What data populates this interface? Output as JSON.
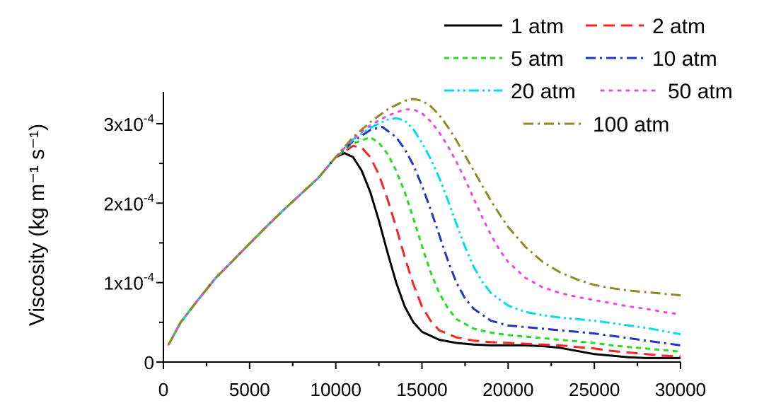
{
  "chart_data": {
    "type": "line",
    "title": "",
    "xlabel": "",
    "ylabel": "Viscosity (kg m⁻¹ s⁻¹)",
    "xlim": [
      0,
      30000
    ],
    "ylim": [
      0,
      0.00034
    ],
    "x_ticks": [
      0,
      5000,
      10000,
      15000,
      20000,
      25000,
      30000
    ],
    "x_tick_labels": [
      "0",
      "5000",
      "10000",
      "15000",
      "20000",
      "25000",
      "30000"
    ],
    "y_ticks": [
      0,
      0.0001,
      0.0002,
      0.0003
    ],
    "y_tick_labels": [
      {
        "base": "0",
        "exp": ""
      },
      {
        "base": "1x10",
        "exp": "-4"
      },
      {
        "base": "2x10",
        "exp": "-4"
      },
      {
        "base": "3x10",
        "exp": "-4"
      }
    ],
    "grid": false,
    "legend_position": "top-right",
    "series": [
      {
        "name": "1 atm",
        "color": "#000000",
        "dash": "solid",
        "points": [
          [
            300,
            2.2e-05
          ],
          [
            1000,
            5e-05
          ],
          [
            2000,
            7.8e-05
          ],
          [
            3000,
            0.000105
          ],
          [
            4000,
            0.000127
          ],
          [
            5000,
            0.000149
          ],
          [
            6000,
            0.000171
          ],
          [
            7000,
            0.000192
          ],
          [
            8000,
            0.000212
          ],
          [
            9000,
            0.000232
          ],
          [
            10000,
            0.000258
          ],
          [
            10500,
            0.000263
          ],
          [
            11000,
            0.000258
          ],
          [
            11500,
            0.000241
          ],
          [
            12000,
            0.000214
          ],
          [
            12500,
            0.000178
          ],
          [
            13000,
            0.000138
          ],
          [
            13500,
            0.0001
          ],
          [
            14000,
            7e-05
          ],
          [
            14500,
            5e-05
          ],
          [
            15000,
            3.8e-05
          ],
          [
            16000,
            2.8e-05
          ],
          [
            17000,
            2.4e-05
          ],
          [
            18000,
            2.2e-05
          ],
          [
            19000,
            2.1e-05
          ],
          [
            20000,
            2.1e-05
          ],
          [
            21000,
            2.1e-05
          ],
          [
            22000,
            2e-05
          ],
          [
            23000,
            1.8e-05
          ],
          [
            24000,
            1.4e-05
          ],
          [
            25000,
            1e-05
          ],
          [
            26000,
            8e-06
          ],
          [
            27000,
            6e-06
          ],
          [
            28000,
            5e-06
          ],
          [
            29000,
            5e-06
          ],
          [
            30000,
            5e-06
          ]
        ]
      },
      {
        "name": "2 atm",
        "color": "#ff2020",
        "dash": "dashed",
        "points": [
          [
            300,
            2.2e-05
          ],
          [
            1000,
            5e-05
          ],
          [
            2000,
            7.8e-05
          ],
          [
            3000,
            0.000105
          ],
          [
            4000,
            0.000127
          ],
          [
            5000,
            0.000149
          ],
          [
            6000,
            0.000171
          ],
          [
            7000,
            0.000192
          ],
          [
            8000,
            0.000212
          ],
          [
            9000,
            0.000232
          ],
          [
            10000,
            0.000258
          ],
          [
            11000,
            0.000272
          ],
          [
            11500,
            0.00027
          ],
          [
            12000,
            0.000258
          ],
          [
            12500,
            0.000236
          ],
          [
            13000,
            0.000205
          ],
          [
            13500,
            0.00017
          ],
          [
            14000,
            0.000132
          ],
          [
            14500,
            9.8e-05
          ],
          [
            15000,
            7e-05
          ],
          [
            15500,
            5.2e-05
          ],
          [
            16000,
            4e-05
          ],
          [
            17000,
            3.1e-05
          ],
          [
            18000,
            2.7e-05
          ],
          [
            19000,
            2.5e-05
          ],
          [
            20000,
            2.4e-05
          ],
          [
            21000,
            2.3e-05
          ],
          [
            22000,
            2.2e-05
          ],
          [
            23000,
            2.1e-05
          ],
          [
            24000,
            1.9e-05
          ],
          [
            25000,
            1.7e-05
          ],
          [
            26000,
            1.4e-05
          ],
          [
            27000,
            1.2e-05
          ],
          [
            28000,
            1e-05
          ],
          [
            29000,
            8e-06
          ],
          [
            30000,
            7e-06
          ]
        ]
      },
      {
        "name": "5 atm",
        "color": "#22dd22",
        "dash": "short-dashed",
        "points": [
          [
            300,
            2.2e-05
          ],
          [
            1000,
            5e-05
          ],
          [
            2000,
            7.8e-05
          ],
          [
            3000,
            0.000105
          ],
          [
            4000,
            0.000127
          ],
          [
            5000,
            0.000149
          ],
          [
            6000,
            0.000171
          ],
          [
            7000,
            0.000192
          ],
          [
            8000,
            0.000212
          ],
          [
            9000,
            0.000232
          ],
          [
            10000,
            0.000258
          ],
          [
            11000,
            0.000275
          ],
          [
            12000,
            0.000283
          ],
          [
            12500,
            0.000276
          ],
          [
            13000,
            0.000262
          ],
          [
            13500,
            0.000241
          ],
          [
            14000,
            0.000214
          ],
          [
            14500,
            0.000181
          ],
          [
            15000,
            0.000146
          ],
          [
            15500,
            0.000113
          ],
          [
            16000,
            8.7e-05
          ],
          [
            16500,
            6.8e-05
          ],
          [
            17000,
            5.4e-05
          ],
          [
            18000,
            4.2e-05
          ],
          [
            19000,
            3.7e-05
          ],
          [
            20000,
            3.4e-05
          ],
          [
            21000,
            3.2e-05
          ],
          [
            22000,
            3e-05
          ],
          [
            23000,
            2.8e-05
          ],
          [
            24000,
            2.6e-05
          ],
          [
            25000,
            2.4e-05
          ],
          [
            26000,
            2.1e-05
          ],
          [
            27000,
            1.9e-05
          ],
          [
            28000,
            1.7e-05
          ],
          [
            29000,
            1.5e-05
          ],
          [
            30000,
            1.3e-05
          ]
        ]
      },
      {
        "name": "10 atm",
        "color": "#2233cc",
        "dash": "dash-dot",
        "points": [
          [
            300,
            2.2e-05
          ],
          [
            1000,
            5e-05
          ],
          [
            2000,
            7.8e-05
          ],
          [
            3000,
            0.000105
          ],
          [
            4000,
            0.000127
          ],
          [
            5000,
            0.000149
          ],
          [
            6000,
            0.000171
          ],
          [
            7000,
            0.000192
          ],
          [
            8000,
            0.000212
          ],
          [
            9000,
            0.000232
          ],
          [
            10000,
            0.000258
          ],
          [
            11000,
            0.000278
          ],
          [
            12000,
            0.000292
          ],
          [
            12700,
            0.000296
          ],
          [
            13500,
            0.000283
          ],
          [
            14000,
            0.000268
          ],
          [
            14500,
            0.000248
          ],
          [
            15000,
            0.000222
          ],
          [
            15500,
            0.000192
          ],
          [
            16000,
            0.00016
          ],
          [
            16500,
            0.000128
          ],
          [
            17000,
            0.0001
          ],
          [
            17500,
            8e-05
          ],
          [
            18000,
            6.7e-05
          ],
          [
            19000,
            5.2e-05
          ],
          [
            20000,
            4.6e-05
          ],
          [
            21000,
            4.4e-05
          ],
          [
            22000,
            4.2e-05
          ],
          [
            23000,
            4e-05
          ],
          [
            24000,
            3.8e-05
          ],
          [
            25000,
            3.6e-05
          ],
          [
            26000,
            3.3e-05
          ],
          [
            27000,
            3e-05
          ],
          [
            28000,
            2.7e-05
          ],
          [
            29000,
            2.4e-05
          ],
          [
            30000,
            2.1e-05
          ]
        ]
      },
      {
        "name": "20 atm",
        "color": "#00ddee",
        "dash": "dash-dot-dot",
        "points": [
          [
            300,
            2.2e-05
          ],
          [
            1000,
            5e-05
          ],
          [
            2000,
            7.8e-05
          ],
          [
            3000,
            0.000105
          ],
          [
            4000,
            0.000127
          ],
          [
            5000,
            0.000149
          ],
          [
            6000,
            0.000171
          ],
          [
            7000,
            0.000192
          ],
          [
            8000,
            0.000212
          ],
          [
            9000,
            0.000232
          ],
          [
            10000,
            0.000258
          ],
          [
            11000,
            0.00028
          ],
          [
            12000,
            0.000295
          ],
          [
            13000,
            0.000305
          ],
          [
            13500,
            0.000307
          ],
          [
            14000,
            0.000304
          ],
          [
            14500,
            0.000293
          ],
          [
            15000,
            0.000276
          ],
          [
            15500,
            0.000256
          ],
          [
            16000,
            0.000232
          ],
          [
            16500,
            0.000204
          ],
          [
            17000,
            0.000174
          ],
          [
            17500,
            0.000145
          ],
          [
            18000,
            0.00012
          ],
          [
            18500,
            0.000101
          ],
          [
            19000,
            8.7e-05
          ],
          [
            20000,
            7.1e-05
          ],
          [
            21000,
            6.3e-05
          ],
          [
            22000,
            5.9e-05
          ],
          [
            23000,
            5.6e-05
          ],
          [
            24000,
            5.4e-05
          ],
          [
            25000,
            5.2e-05
          ],
          [
            26000,
            4.9e-05
          ],
          [
            27000,
            4.6e-05
          ],
          [
            28000,
            4.3e-05
          ],
          [
            29000,
            3.9e-05
          ],
          [
            30000,
            3.5e-05
          ]
        ]
      },
      {
        "name": "50 atm",
        "color": "#ee44ee",
        "dash": "dotted",
        "points": [
          [
            300,
            2.2e-05
          ],
          [
            1000,
            5e-05
          ],
          [
            2000,
            7.8e-05
          ],
          [
            3000,
            0.000105
          ],
          [
            4000,
            0.000127
          ],
          [
            5000,
            0.000149
          ],
          [
            6000,
            0.000171
          ],
          [
            7000,
            0.000192
          ],
          [
            8000,
            0.000212
          ],
          [
            9000,
            0.000232
          ],
          [
            10000,
            0.000258
          ],
          [
            11000,
            0.000281
          ],
          [
            12000,
            0.000298
          ],
          [
            13000,
            0.00031
          ],
          [
            14000,
            0.000318
          ],
          [
            14500,
            0.000318
          ],
          [
            15000,
            0.000313
          ],
          [
            15500,
            0.000303
          ],
          [
            16000,
            0.000289
          ],
          [
            16500,
            0.000272
          ],
          [
            17000,
            0.000252
          ],
          [
            17500,
            0.00023
          ],
          [
            18000,
            0.000206
          ],
          [
            18500,
            0.000182
          ],
          [
            19000,
            0.00016
          ],
          [
            19500,
            0.000141
          ],
          [
            20000,
            0.000126
          ],
          [
            21000,
            0.000106
          ],
          [
            22000,
            9.4e-05
          ],
          [
            23000,
            8.7e-05
          ],
          [
            24000,
            8.2e-05
          ],
          [
            25000,
            7.8e-05
          ],
          [
            26000,
            7.4e-05
          ],
          [
            27000,
            7e-05
          ],
          [
            28000,
            6.7e-05
          ],
          [
            29000,
            6.3e-05
          ],
          [
            30000,
            6e-05
          ]
        ]
      },
      {
        "name": "100 atm",
        "color": "#8b8b22",
        "dash": "dash-dot",
        "points": [
          [
            300,
            2.2e-05
          ],
          [
            1000,
            5e-05
          ],
          [
            2000,
            7.8e-05
          ],
          [
            3000,
            0.000105
          ],
          [
            4000,
            0.000127
          ],
          [
            5000,
            0.000149
          ],
          [
            6000,
            0.000171
          ],
          [
            7000,
            0.000192
          ],
          [
            8000,
            0.000212
          ],
          [
            9000,
            0.000232
          ],
          [
            10000,
            0.000258
          ],
          [
            11000,
            0.000283
          ],
          [
            12000,
            0.000302
          ],
          [
            13000,
            0.000318
          ],
          [
            14000,
            0.000329
          ],
          [
            14500,
            0.000331
          ],
          [
            15000,
            0.000329
          ],
          [
            15500,
            0.000322
          ],
          [
            16000,
            0.000311
          ],
          [
            16500,
            0.000296
          ],
          [
            17000,
            0.000279
          ],
          [
            17500,
            0.00026
          ],
          [
            18000,
            0.000241
          ],
          [
            18500,
            0.000222
          ],
          [
            19000,
            0.000203
          ],
          [
            19500,
            0.000186
          ],
          [
            20000,
            0.00017
          ],
          [
            21000,
            0.000145
          ],
          [
            22000,
            0.000126
          ],
          [
            23000,
            0.000113
          ],
          [
            24000,
            0.000104
          ],
          [
            25000,
            9.7e-05
          ],
          [
            26000,
            9.3e-05
          ],
          [
            27000,
            9e-05
          ],
          [
            28000,
            8.8e-05
          ],
          [
            29000,
            8.6e-05
          ],
          [
            30000,
            8.4e-05
          ]
        ]
      }
    ]
  }
}
